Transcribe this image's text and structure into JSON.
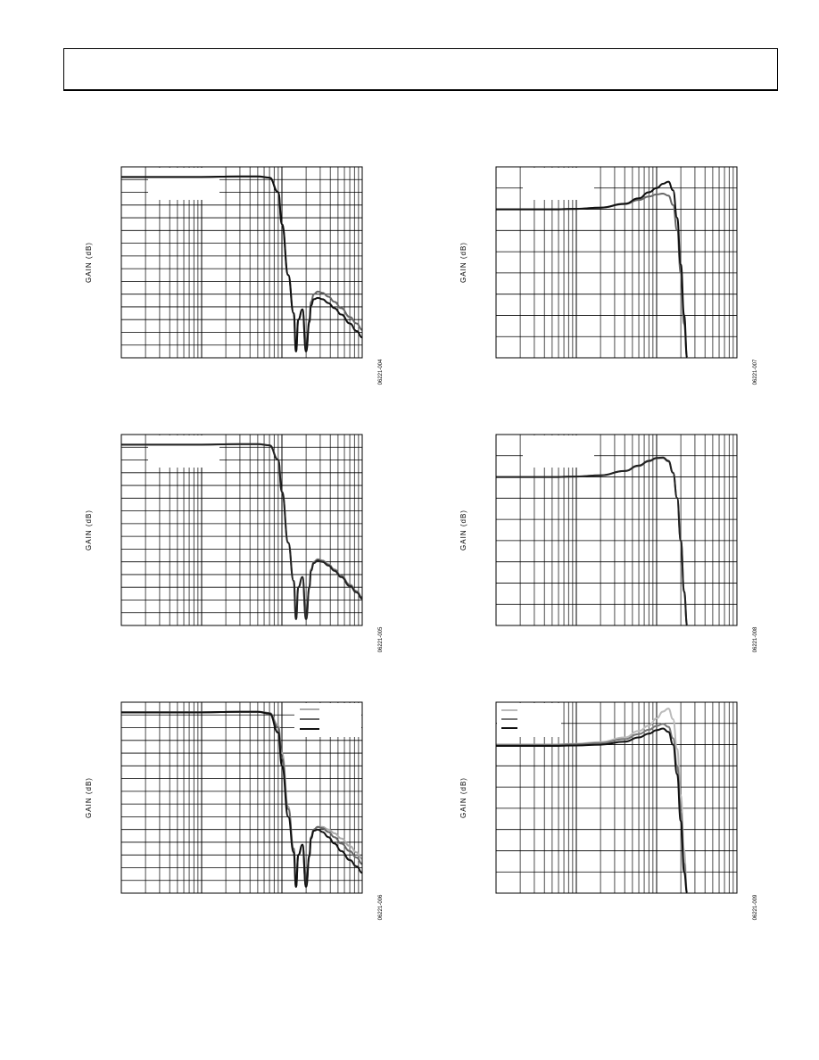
{
  "page": {
    "header_text": ""
  },
  "chart_data": [
    {
      "type": "line",
      "id": "fig-004",
      "figure_code": "06221-004",
      "title": "",
      "xlabel": "",
      "ylabel": "GAIN (dB)",
      "xscale": "log",
      "xlim": [
        1,
        1000
      ],
      "ylim": [
        -140,
        10
      ],
      "grid": true,
      "legend": "top-left (blank)",
      "series": [
        {
          "name": "",
          "color": "#666666",
          "x": [
            1,
            10,
            30,
            50,
            70,
            90,
            100,
            120,
            140,
            150,
            160,
            180,
            200,
            220,
            230,
            250,
            280,
            320,
            380,
            450,
            550,
            700,
            850,
            1000
          ],
          "y": [
            2,
            2,
            2.5,
            2.5,
            1.5,
            -10,
            -35,
            -75,
            -105,
            -135,
            -110,
            -102,
            -135,
            -110,
            -96,
            -90,
            -88,
            -89,
            -92,
            -96,
            -101,
            -108,
            -113,
            -118
          ]
        },
        {
          "name": "",
          "color": "#111111",
          "x": [
            1,
            10,
            30,
            50,
            70,
            90,
            100,
            120,
            140,
            150,
            160,
            180,
            200,
            220,
            230,
            250,
            280,
            320,
            380,
            450,
            550,
            700,
            850,
            1000
          ],
          "y": [
            2,
            2,
            2.5,
            2.5,
            1.5,
            -10,
            -35,
            -75,
            -105,
            -135,
            -110,
            -102,
            -135,
            -112,
            -99,
            -94,
            -93,
            -94,
            -97,
            -101,
            -106,
            -113,
            -119,
            -124
          ]
        }
      ]
    },
    {
      "type": "line",
      "id": "fig-007",
      "figure_code": "06221-007",
      "title": "",
      "xlabel": "",
      "ylabel": "GAIN (dB)",
      "xscale": "log",
      "xlim": [
        1,
        1000
      ],
      "ylim": [
        -40,
        5
      ],
      "grid": true,
      "legend": "top-left (blank)",
      "series": [
        {
          "name": "",
          "color": "#666666",
          "x": [
            1,
            5,
            10,
            20,
            40,
            60,
            80,
            100,
            120,
            140,
            160,
            180,
            200,
            220,
            240
          ],
          "y": [
            -5,
            -5,
            -4.9,
            -4.6,
            -3.8,
            -2.8,
            -2,
            -1.5,
            -1.3,
            -1.8,
            -4,
            -10,
            -20,
            -32,
            -42
          ]
        },
        {
          "name": "",
          "color": "#111111",
          "x": [
            1,
            5,
            10,
            20,
            40,
            60,
            80,
            100,
            120,
            140,
            160,
            180,
            200,
            220,
            240
          ],
          "y": [
            -5,
            -5,
            -4.9,
            -4.6,
            -3.7,
            -2.4,
            -1,
            0,
            1,
            1.5,
            -0.5,
            -7,
            -18,
            -30,
            -42
          ]
        }
      ]
    },
    {
      "type": "line",
      "id": "fig-005",
      "figure_code": "06221-005",
      "title": "",
      "xlabel": "",
      "ylabel": "GAIN (dB)",
      "xscale": "log",
      "xlim": [
        1,
        1000
      ],
      "ylim": [
        -140,
        10
      ],
      "grid": true,
      "legend": "top-left (blank)",
      "series": [
        {
          "name": "",
          "color": "#777777",
          "x": [
            1,
            10,
            30,
            50,
            70,
            90,
            100,
            120,
            140,
            150,
            160,
            180,
            200,
            220,
            230,
            250,
            280,
            320,
            380,
            450,
            550,
            700,
            850,
            1000
          ],
          "y": [
            2,
            2,
            2.5,
            2.5,
            1.5,
            -10,
            -35,
            -75,
            -105,
            -135,
            -110,
            -102,
            -135,
            -110,
            -96,
            -90,
            -88,
            -89,
            -92,
            -96,
            -101,
            -108,
            -113,
            -118
          ]
        },
        {
          "name": "",
          "color": "#222222",
          "x": [
            1,
            10,
            30,
            50,
            70,
            90,
            100,
            120,
            140,
            150,
            160,
            180,
            200,
            220,
            230,
            250,
            280,
            320,
            380,
            450,
            550,
            700,
            850,
            1000
          ],
          "y": [
            2,
            2,
            2.5,
            2.5,
            1.5,
            -10,
            -35,
            -75,
            -105,
            -135,
            -110,
            -102,
            -135,
            -110,
            -97,
            -91,
            -89,
            -90,
            -93,
            -97,
            -102,
            -109,
            -114,
            -119
          ]
        }
      ]
    },
    {
      "type": "line",
      "id": "fig-008",
      "figure_code": "06221-008",
      "title": "",
      "xlabel": "",
      "ylabel": "GAIN (dB)",
      "xscale": "log",
      "xlim": [
        1,
        1000
      ],
      "ylim": [
        -40,
        5
      ],
      "grid": true,
      "legend": "top-left (blank)",
      "series": [
        {
          "name": "",
          "color": "#666666",
          "x": [
            1,
            5,
            10,
            20,
            40,
            60,
            80,
            100,
            120,
            140,
            160,
            180,
            200,
            220,
            240
          ],
          "y": [
            -5,
            -5,
            -4.9,
            -4.6,
            -3.6,
            -2.4,
            -1.3,
            -0.6,
            -0.5,
            -1.3,
            -4,
            -10,
            -20,
            -32,
            -42
          ]
        },
        {
          "name": "",
          "color": "#222222",
          "x": [
            1,
            5,
            10,
            20,
            40,
            60,
            80,
            100,
            120,
            140,
            160,
            180,
            200,
            220,
            240
          ],
          "y": [
            -5,
            -5,
            -4.9,
            -4.6,
            -3.6,
            -2.3,
            -1.2,
            -0.5,
            -0.4,
            -1.2,
            -4,
            -10,
            -20,
            -32,
            -42
          ]
        }
      ]
    },
    {
      "type": "line",
      "id": "fig-006",
      "figure_code": "06221-006",
      "title": "",
      "xlabel": "",
      "ylabel": "GAIN (dB)",
      "xscale": "log",
      "xlim": [
        1,
        1000
      ],
      "ylim": [
        -140,
        10
      ],
      "grid": true,
      "legend": "top-right",
      "series": [
        {
          "name": "",
          "color": "#aaaaaa",
          "x": [
            1,
            10,
            30,
            50,
            70,
            90,
            100,
            120,
            140,
            150,
            160,
            180,
            200,
            220,
            230,
            250,
            280,
            320,
            380,
            450,
            550,
            700,
            850,
            1000
          ],
          "y": [
            2,
            2,
            2.5,
            2.5,
            1.5,
            -8,
            -30,
            -72,
            -105,
            -135,
            -110,
            -102,
            -135,
            -110,
            -96,
            -90,
            -88,
            -88,
            -90,
            -93,
            -97,
            -103,
            -108,
            -113
          ]
        },
        {
          "name": "",
          "color": "#666666",
          "x": [
            1,
            10,
            30,
            50,
            70,
            90,
            100,
            120,
            140,
            150,
            160,
            180,
            200,
            220,
            230,
            250,
            280,
            320,
            380,
            450,
            550,
            700,
            850,
            1000
          ],
          "y": [
            2,
            2,
            2.5,
            2.5,
            1.5,
            -10,
            -34,
            -74,
            -105,
            -135,
            -110,
            -102,
            -135,
            -110,
            -96,
            -90,
            -88,
            -89,
            -92,
            -96,
            -101,
            -107,
            -112,
            -117
          ]
        },
        {
          "name": "",
          "color": "#111111",
          "x": [
            1,
            10,
            30,
            50,
            70,
            90,
            100,
            120,
            140,
            150,
            160,
            180,
            200,
            220,
            230,
            250,
            280,
            320,
            380,
            450,
            550,
            700,
            850,
            1000
          ],
          "y": [
            2,
            2,
            2.5,
            2.5,
            1.0,
            -14,
            -40,
            -80,
            -108,
            -135,
            -110,
            -102,
            -135,
            -111,
            -97,
            -91,
            -90,
            -92,
            -96,
            -101,
            -107,
            -114,
            -119,
            -124
          ]
        }
      ]
    },
    {
      "type": "line",
      "id": "fig-009",
      "figure_code": "06221-009",
      "title": "",
      "xlabel": "",
      "ylabel": "GAIN (dB)",
      "xscale": "log",
      "xlim": [
        1,
        1000
      ],
      "ylim": [
        -40,
        5
      ],
      "grid": true,
      "legend": "top-left",
      "series": [
        {
          "name": "",
          "color": "#bbbbbb",
          "x": [
            1,
            5,
            10,
            20,
            40,
            60,
            80,
            100,
            120,
            140,
            160,
            180,
            200,
            220,
            240
          ],
          "y": [
            -5,
            -5,
            -4.8,
            -4.4,
            -3.3,
            -1.8,
            -0.5,
            1.2,
            2.8,
            3.5,
            1,
            -6,
            -17,
            -30,
            -42
          ]
        },
        {
          "name": "",
          "color": "#777777",
          "x": [
            1,
            5,
            10,
            20,
            40,
            60,
            80,
            100,
            120,
            140,
            160,
            180,
            200,
            220,
            240
          ],
          "y": [
            -5,
            -5,
            -4.9,
            -4.6,
            -3.7,
            -2.5,
            -1.5,
            -0.6,
            -0.1,
            -0.8,
            -3.5,
            -10,
            -21,
            -33,
            -42
          ]
        },
        {
          "name": "",
          "color": "#111111",
          "x": [
            1,
            5,
            10,
            20,
            40,
            60,
            80,
            100,
            120,
            140,
            160,
            180,
            200,
            220,
            240
          ],
          "y": [
            -5.3,
            -5.3,
            -5.2,
            -5,
            -4.3,
            -3.3,
            -2.4,
            -1.6,
            -1.2,
            -2,
            -5,
            -12,
            -23,
            -35,
            -42
          ]
        }
      ]
    }
  ]
}
